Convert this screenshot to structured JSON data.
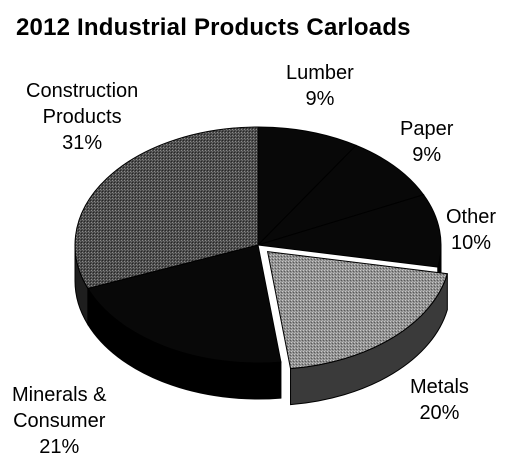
{
  "chart_data": {
    "type": "pie",
    "title": "2012 Industrial Products Carloads",
    "slices": [
      {
        "label": "Lumber",
        "value": 9,
        "value_label": "9%"
      },
      {
        "label": "Paper",
        "value": 9,
        "value_label": "9%"
      },
      {
        "label": "Other",
        "value": 10,
        "value_label": "10%"
      },
      {
        "label": "Metals",
        "value": 20,
        "value_label": "20%"
      },
      {
        "label": "Minerals & Consumer",
        "label_lines": [
          "Minerals &",
          "Consumer"
        ],
        "value": 21,
        "value_label": "21%"
      },
      {
        "label": "Construction Products",
        "label_lines": [
          "Construction",
          "Products"
        ],
        "value": 31,
        "value_label": "31%"
      }
    ],
    "exploded_slice": "Metals",
    "three_d": true,
    "legend": "none",
    "colors": {
      "dark": "#080808",
      "metals": "#8f8f8f",
      "construction": "#4a4a4a",
      "edge": "#000000"
    }
  }
}
